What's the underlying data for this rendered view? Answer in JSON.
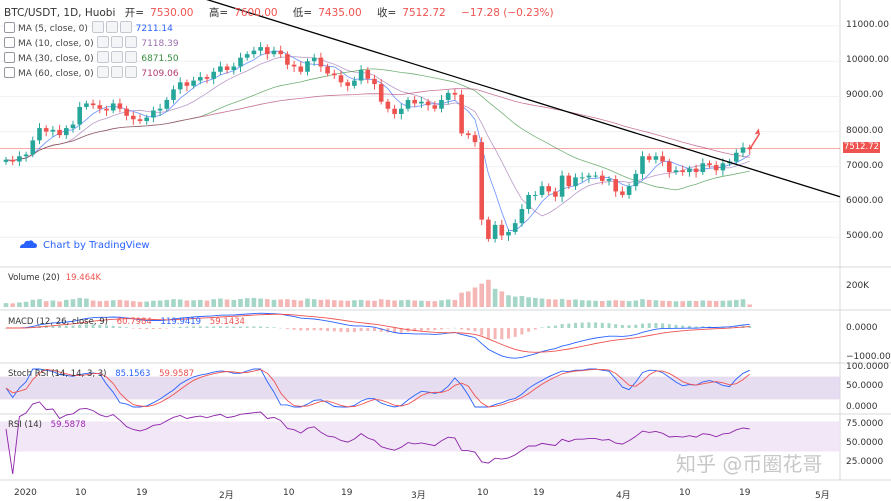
{
  "header": {
    "symbol": "BTC/USDT, 1D, Huobi",
    "open_label": "开=",
    "open_value": "7530.00",
    "high_label": "高=",
    "high_value": "7600.00",
    "low_label": "低=",
    "low_value": "7435.00",
    "close_label": "收=",
    "close_value": "7512.72",
    "change": "−17.28 (−0.23%)"
  },
  "ma_legends": [
    {
      "label": "MA (5, close, 0)",
      "value": "7211.14",
      "color": "#2962ff"
    },
    {
      "label": "MA (10, close, 0)",
      "value": "7118.39",
      "color": "#9c6fb0"
    },
    {
      "label": "MA (30, close, 0)",
      "value": "6871.50",
      "color": "#388e3c"
    },
    {
      "label": "MA (60, close, 0)",
      "value": "7109.06",
      "color": "#b23c6e"
    }
  ],
  "attribution": "Chart by TradingView",
  "price_tag": "7512.72",
  "watermark": "知乎 @币圈花哥",
  "panes": {
    "volume": {
      "label": "Volume (20)",
      "value": "19.464K",
      "axis": [
        "200K"
      ]
    },
    "macd": {
      "label": "MACD (12, 26, close, 9)",
      "values": [
        "60.7984",
        "119.9419",
        "59.1434"
      ],
      "axis": [
        "0.0000",
        "−1000.0000"
      ]
    },
    "stoch": {
      "label": "Stoch RSI (14, 14, 3, 3)",
      "values": [
        "85.1563",
        "59.9587"
      ],
      "axis": [
        "100.0000",
        "50.0000",
        "0.0000"
      ]
    },
    "rsi": {
      "label": "RSI (14)",
      "value": "59.5878",
      "axis": [
        "75.0000",
        "50.0000",
        "25.0000"
      ]
    }
  },
  "price_axis": [
    "11000.00",
    "10000.00",
    "9000.00",
    "8000.00",
    "7000.00",
    "6000.00",
    "5000.00"
  ],
  "x_axis": [
    "2020",
    "10",
    "19",
    "2月",
    "10",
    "19",
    "3月",
    "10",
    "19",
    "4月",
    "10",
    "19",
    "5月"
  ],
  "colors": {
    "up": "#26a69a",
    "down": "#ef5350",
    "trendline": "#000000"
  },
  "chart_data": {
    "type": "candlestick",
    "title": "BTC/USDT, 1D, Huobi",
    "x_labels": [
      "2020",
      "10",
      "19",
      "2月",
      "10",
      "19",
      "3月",
      "10",
      "19",
      "4月",
      "10",
      "19",
      "5月"
    ],
    "ylim": [
      4000,
      12000
    ],
    "closes": [
      7200,
      7150,
      7300,
      7350,
      7750,
      8100,
      8000,
      8050,
      7900,
      8100,
      8200,
      8700,
      8800,
      8750,
      8650,
      8600,
      8800,
      8650,
      8450,
      8350,
      8300,
      8400,
      8600,
      8650,
      8900,
      9200,
      9400,
      9300,
      9450,
      9550,
      9500,
      9700,
      9850,
      9750,
      9850,
      10100,
      10200,
      10300,
      10400,
      10200,
      10300,
      10200,
      9900,
      9850,
      9700,
      10000,
      10100,
      9850,
      9650,
      9600,
      9400,
      9300,
      9450,
      9750,
      9500,
      9350,
      8850,
      8650,
      8500,
      8650,
      8900,
      8800,
      8850,
      8750,
      8650,
      8900,
      9100,
      9050,
      7950,
      7900,
      7700,
      5500,
      4950,
      5350,
      5050,
      5150,
      5400,
      5800,
      6200,
      6200,
      6450,
      6300,
      6150,
      6750,
      6450,
      6700,
      6700,
      6750,
      6750,
      6600,
      6650,
      6300,
      6200,
      6450,
      6800,
      7300,
      7200,
      7300,
      7150,
      6850,
      6900,
      6850,
      6950,
      6850,
      7100,
      7050,
      6900,
      7100,
      7150,
      7400,
      7550,
      7500
    ],
    "trendline": [
      {
        "date_index": 0,
        "price": 11950
      },
      {
        "date_index": 111,
        "price": 6150
      }
    ],
    "volume_values_k": [
      30,
      28,
      35,
      40,
      55,
      60,
      45,
      50,
      42,
      55,
      60,
      70,
      65,
      50,
      45,
      48,
      52,
      55,
      50,
      45,
      40,
      42,
      48,
      50,
      55,
      60,
      58,
      50,
      52,
      55,
      50,
      60,
      65,
      58,
      55,
      62,
      68,
      70,
      65,
      60,
      55,
      58,
      60,
      55,
      50,
      65,
      60,
      55,
      58,
      52,
      50,
      48,
      52,
      55,
      50,
      48,
      60,
      55,
      50,
      52,
      55,
      50,
      48,
      46,
      45,
      52,
      58,
      55,
      110,
      120,
      150,
      180,
      210,
      140,
      120,
      90,
      80,
      85,
      75,
      70,
      65,
      60,
      58,
      62,
      55,
      58,
      52,
      50,
      48,
      46,
      50,
      52,
      48,
      45,
      50,
      60,
      55,
      52,
      48,
      46,
      44,
      45,
      48,
      46,
      50,
      48,
      46,
      48,
      50,
      55,
      60,
      19
    ]
  }
}
